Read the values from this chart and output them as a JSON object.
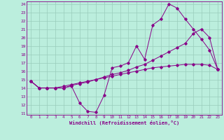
{
  "xlabel": "Windchill (Refroidissement éolien,°C)",
  "bg_color": "#bbeedd",
  "line_color": "#880088",
  "grid_color": "#99ccbb",
  "xlim": [
    -0.5,
    23.5
  ],
  "ylim": [
    10.8,
    24.3
  ],
  "xticks": [
    0,
    1,
    2,
    3,
    4,
    5,
    6,
    7,
    8,
    9,
    10,
    11,
    12,
    13,
    14,
    15,
    16,
    17,
    18,
    19,
    20,
    21,
    22,
    23
  ],
  "yticks": [
    11,
    12,
    13,
    14,
    15,
    16,
    17,
    18,
    19,
    20,
    21,
    22,
    23,
    24
  ],
  "line1_x": [
    0,
    1,
    2,
    3,
    4,
    5,
    6,
    7,
    8,
    9,
    10,
    11,
    12,
    13,
    14,
    15,
    16,
    17,
    18,
    19,
    20,
    21,
    22,
    23
  ],
  "line1_y": [
    14.8,
    14.0,
    14.0,
    14.0,
    14.0,
    14.2,
    12.2,
    11.2,
    11.1,
    13.1,
    16.4,
    16.6,
    17.0,
    19.0,
    17.4,
    21.5,
    22.2,
    24.0,
    23.5,
    22.2,
    21.0,
    19.8,
    18.5,
    16.2
  ],
  "line2_x": [
    0,
    1,
    2,
    3,
    4,
    5,
    6,
    7,
    8,
    9,
    10,
    11,
    12,
    13,
    14,
    15,
    16,
    17,
    18,
    19,
    20,
    21,
    22,
    23
  ],
  "line2_y": [
    14.8,
    14.0,
    14.0,
    14.0,
    14.0,
    14.3,
    14.5,
    14.7,
    15.0,
    15.3,
    15.6,
    15.8,
    16.1,
    16.5,
    16.8,
    17.3,
    17.8,
    18.3,
    18.8,
    19.3,
    20.5,
    21.0,
    20.0,
    16.2
  ],
  "line3_x": [
    0,
    1,
    2,
    3,
    4,
    5,
    6,
    7,
    8,
    9,
    10,
    11,
    12,
    13,
    14,
    15,
    16,
    17,
    18,
    19,
    20,
    21,
    22,
    23
  ],
  "line3_y": [
    14.8,
    14.0,
    14.0,
    14.0,
    14.2,
    14.4,
    14.6,
    14.8,
    15.0,
    15.2,
    15.4,
    15.6,
    15.8,
    16.0,
    16.2,
    16.4,
    16.5,
    16.6,
    16.7,
    16.8,
    16.8,
    16.8,
    16.7,
    16.2
  ]
}
